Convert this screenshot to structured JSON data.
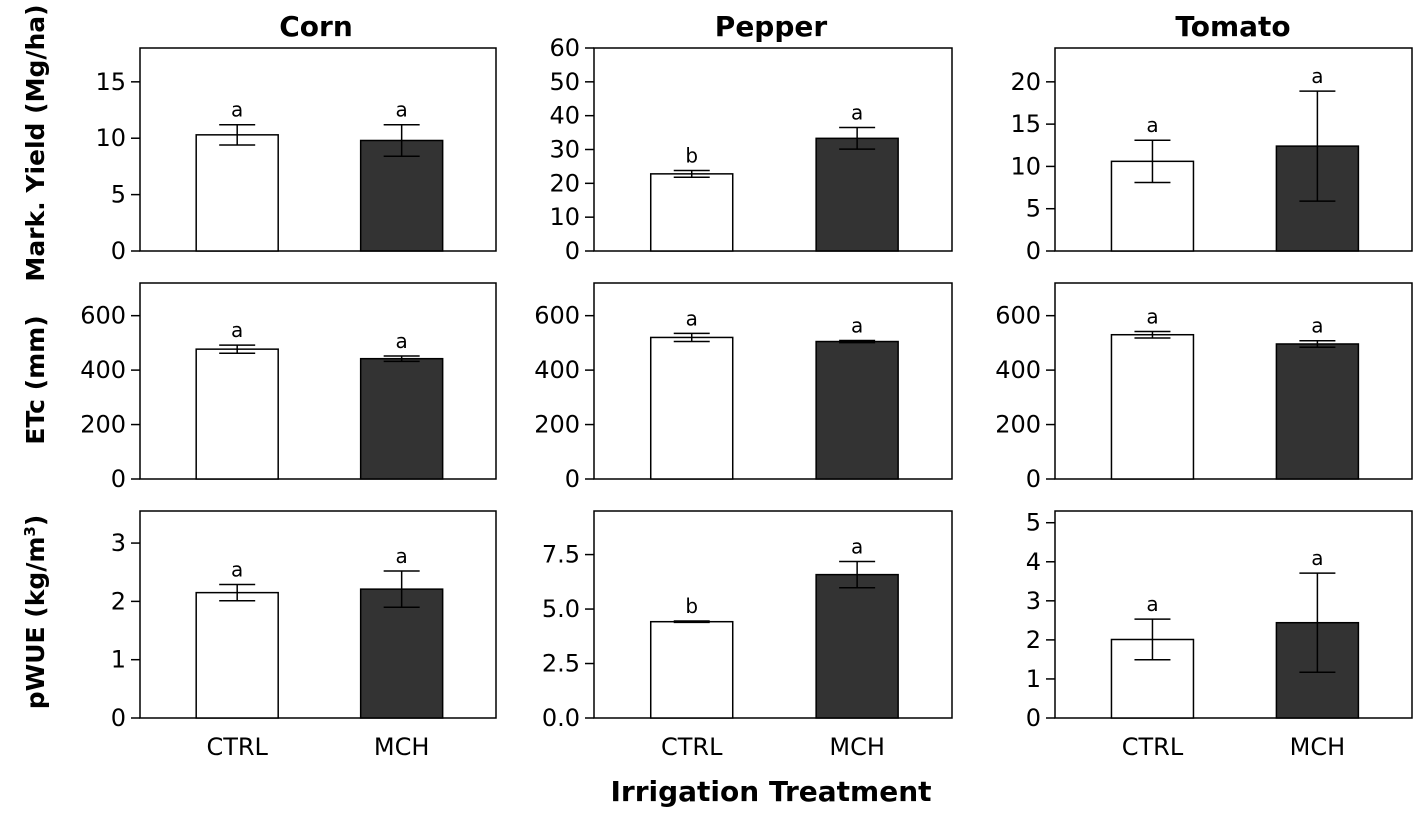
{
  "figure": {
    "x_title": "Irrigation Treatment",
    "columns": [
      "Corn",
      "Pepper",
      "Tomato"
    ],
    "rows": [
      {
        "label": "Mark. Yield (Mg/ha)"
      },
      {
        "label": "ETc (mm)"
      },
      {
        "label": "pWUE (kg/m",
        "sup": "3",
        "tail": ")"
      }
    ]
  },
  "colors": {
    "CTRL": "#ffffff",
    "MCH": "#333333",
    "stroke": "#000000"
  },
  "chart_data": [
    {
      "type": "bar",
      "title": "Corn",
      "ylabel": "Mark. Yield (Mg/ha)",
      "categories": [
        "CTRL",
        "MCH"
      ],
      "values": [
        10.3,
        9.8
      ],
      "errors": [
        0.9,
        1.4
      ],
      "letters": [
        "a",
        "a"
      ],
      "ylim": [
        0,
        18
      ],
      "yticks": [
        "0",
        "5",
        "10",
        "15"
      ],
      "ytick_values": [
        0,
        5,
        10,
        15
      ]
    },
    {
      "type": "bar",
      "title": "Pepper",
      "ylabel": "Mark. Yield (Mg/ha)",
      "categories": [
        "CTRL",
        "MCH"
      ],
      "values": [
        22.8,
        33.3
      ],
      "errors": [
        1.0,
        3.2
      ],
      "letters": [
        "b",
        "a"
      ],
      "ylim": [
        0,
        60
      ],
      "yticks": [
        "0",
        "10",
        "20",
        "30",
        "40",
        "50",
        "60"
      ],
      "ytick_values": [
        0,
        10,
        20,
        30,
        40,
        50,
        60
      ]
    },
    {
      "type": "bar",
      "title": "Tomato",
      "ylabel": "Mark. Yield (Mg/ha)",
      "categories": [
        "CTRL",
        "MCH"
      ],
      "values": [
        10.6,
        12.4
      ],
      "errors": [
        2.5,
        6.5
      ],
      "letters": [
        "a",
        "a"
      ],
      "ylim": [
        0,
        24
      ],
      "yticks": [
        "0",
        "5",
        "10",
        "15",
        "20"
      ],
      "ytick_values": [
        0,
        5,
        10,
        15,
        20
      ]
    },
    {
      "type": "bar",
      "title": "Corn",
      "ylabel": "ETc (mm)",
      "categories": [
        "CTRL",
        "MCH"
      ],
      "values": [
        477,
        442
      ],
      "errors": [
        15,
        10
      ],
      "letters": [
        "a",
        "a"
      ],
      "ylim": [
        0,
        720
      ],
      "yticks": [
        "0",
        "200",
        "400",
        "600"
      ],
      "ytick_values": [
        0,
        200,
        400,
        600
      ]
    },
    {
      "type": "bar",
      "title": "Pepper",
      "ylabel": "ETc (mm)",
      "categories": [
        "CTRL",
        "MCH"
      ],
      "values": [
        520,
        505
      ],
      "errors": [
        15,
        4
      ],
      "letters": [
        "a",
        "a"
      ],
      "ylim": [
        0,
        720
      ],
      "yticks": [
        "0",
        "200",
        "400",
        "600"
      ],
      "ytick_values": [
        0,
        200,
        400,
        600
      ]
    },
    {
      "type": "bar",
      "title": "Tomato",
      "ylabel": "ETc (mm)",
      "categories": [
        "CTRL",
        "MCH"
      ],
      "values": [
        530,
        496
      ],
      "errors": [
        12,
        12
      ],
      "letters": [
        "a",
        "a"
      ],
      "ylim": [
        0,
        720
      ],
      "yticks": [
        "0",
        "200",
        "400",
        "600"
      ],
      "ytick_values": [
        0,
        200,
        400,
        600
      ]
    },
    {
      "type": "bar",
      "title": "Corn",
      "ylabel": "pWUE (kg/m3)",
      "categories": [
        "CTRL",
        "MCH"
      ],
      "values": [
        2.15,
        2.21
      ],
      "errors": [
        0.14,
        0.31
      ],
      "letters": [
        "a",
        "a"
      ],
      "ylim": [
        0,
        3.55
      ],
      "yticks": [
        "0",
        "1",
        "2",
        "3"
      ],
      "ytick_values": [
        0,
        1,
        2,
        3
      ]
    },
    {
      "type": "bar",
      "title": "Pepper",
      "ylabel": "pWUE (kg/m3)",
      "categories": [
        "CTRL",
        "MCH"
      ],
      "values": [
        4.42,
        6.58
      ],
      "errors": [
        0.03,
        0.6
      ],
      "letters": [
        "b",
        "a"
      ],
      "ylim": [
        0,
        9.5
      ],
      "yticks": [
        "0.0",
        "2.5",
        "5.0",
        "7.5"
      ],
      "ytick_values": [
        0,
        2.5,
        5.0,
        7.5
      ]
    },
    {
      "type": "bar",
      "title": "Tomato",
      "ylabel": "pWUE (kg/m3)",
      "categories": [
        "CTRL",
        "MCH"
      ],
      "values": [
        2.01,
        2.44
      ],
      "errors": [
        0.52,
        1.27
      ],
      "letters": [
        "a",
        "a"
      ],
      "ylim": [
        0,
        5.3
      ],
      "yticks": [
        "0",
        "1",
        "2",
        "3",
        "4",
        "5"
      ],
      "ytick_values": [
        0,
        1,
        2,
        3,
        4,
        5
      ]
    }
  ]
}
